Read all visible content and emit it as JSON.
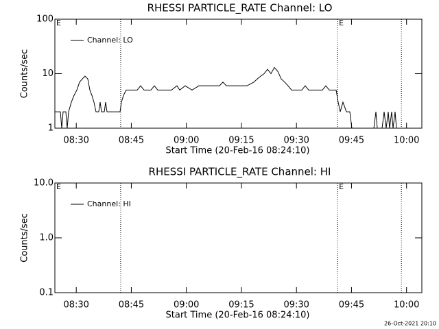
{
  "chart_data": [
    {
      "type": "line",
      "title": "RHESSI PARTICLE_RATE Channel: LO",
      "xlabel": "Start Time (20-Feb-16 08:24:10)",
      "ylabel": "Counts/sec",
      "ylog": true,
      "ylim": [
        1,
        100
      ],
      "yticks": [
        1,
        10,
        100
      ],
      "xlim": [
        504.17,
        604.17
      ],
      "xticks": [
        {
          "value": 510,
          "label": "08:30"
        },
        {
          "value": 525,
          "label": "08:45"
        },
        {
          "value": 540,
          "label": "09:00"
        },
        {
          "value": 555,
          "label": "09:15"
        },
        {
          "value": 570,
          "label": "09:30"
        },
        {
          "value": 585,
          "label": "09:45"
        },
        {
          "value": 600,
          "label": "10:00"
        }
      ],
      "vlines": [
        522.1,
        581.2,
        598.6
      ],
      "annotations": [
        {
          "text": "E",
          "x": 504.17
        },
        {
          "text": "E",
          "x": 581.2
        }
      ],
      "x": [
        504.17,
        505.67,
        506.04,
        506.41,
        507.16,
        507.53,
        507.91,
        508.66,
        509.4,
        510.15,
        510.9,
        511.65,
        512.39,
        513.14,
        513.7,
        514.26,
        514.82,
        515.38,
        516.13,
        516.51,
        516.88,
        517.63,
        518.0,
        518.38,
        519.12,
        520.99,
        521.93,
        522.3,
        522.86,
        523.61,
        524.73,
        526.6,
        527.53,
        528.47,
        530.34,
        531.27,
        532.21,
        534.08,
        535.95,
        537.44,
        538.19,
        539.68,
        541.55,
        543.42,
        545.29,
        547.16,
        549.03,
        549.96,
        550.9,
        552.77,
        554.64,
        556.51,
        558.38,
        559.31,
        560.24,
        561.18,
        562.11,
        563.05,
        563.98,
        564.92,
        565.85,
        566.79,
        567.72,
        568.66,
        569.59,
        571.46,
        572.39,
        573.33,
        575.2,
        577.07,
        578.0,
        578.94,
        580.81,
        581.37,
        581.93,
        582.67,
        583.61,
        584.54,
        585.1,
        591.09,
        591.65,
        592.02,
        593.33,
        593.89,
        594.45,
        595.01,
        595.38,
        595.95,
        596.32,
        596.88,
        597.25
      ],
      "series": [
        {
          "name": "Channel: LO",
          "color": "#000000",
          "values": [
            2,
            2,
            1,
            2,
            2,
            1,
            2,
            3,
            4,
            5,
            7,
            8,
            9,
            8,
            5,
            4,
            3,
            2,
            2,
            3,
            2,
            2,
            3,
            2,
            2,
            2,
            2,
            3,
            4,
            5,
            5,
            5,
            6,
            5,
            5,
            6,
            5,
            5,
            5,
            6,
            5,
            6,
            5,
            6,
            6,
            6,
            6,
            7,
            6,
            6,
            6,
            6,
            7,
            8,
            9,
            10,
            12,
            10,
            13,
            11,
            8,
            7,
            6,
            5,
            5,
            5,
            6,
            5,
            5,
            5,
            6,
            5,
            5,
            3,
            2,
            3,
            2,
            2,
            1,
            1,
            2,
            1,
            1,
            2,
            1,
            2,
            1,
            2,
            1,
            2,
            1
          ]
        }
      ]
    },
    {
      "type": "line",
      "title": "RHESSI PARTICLE_RATE Channel: HI",
      "xlabel": "Start Time (20-Feb-16 08:24:10)",
      "ylabel": "Counts/sec",
      "ylog": true,
      "ylim": [
        0.1,
        10
      ],
      "yticks": [
        0.1,
        {
          "value": 1,
          "label": "1.0"
        },
        {
          "value": 10,
          "label": "10.0"
        }
      ],
      "xlim": [
        504.17,
        604.17
      ],
      "xticks": [
        {
          "value": 510,
          "label": "08:30"
        },
        {
          "value": 525,
          "label": "08:45"
        },
        {
          "value": 540,
          "label": "09:00"
        },
        {
          "value": 555,
          "label": "09:15"
        },
        {
          "value": 570,
          "label": "09:30"
        },
        {
          "value": 585,
          "label": "09:45"
        },
        {
          "value": 600,
          "label": "10:00"
        }
      ],
      "vlines": [
        522.1,
        581.2,
        598.6
      ],
      "annotations": [
        {
          "text": "E",
          "x": 504.17
        },
        {
          "text": "E",
          "x": 581.2
        }
      ],
      "x": [],
      "series": [
        {
          "name": "Channel: HI",
          "color": "#000000",
          "values": []
        }
      ]
    }
  ],
  "footer": "26-Oct-2021 20:10"
}
